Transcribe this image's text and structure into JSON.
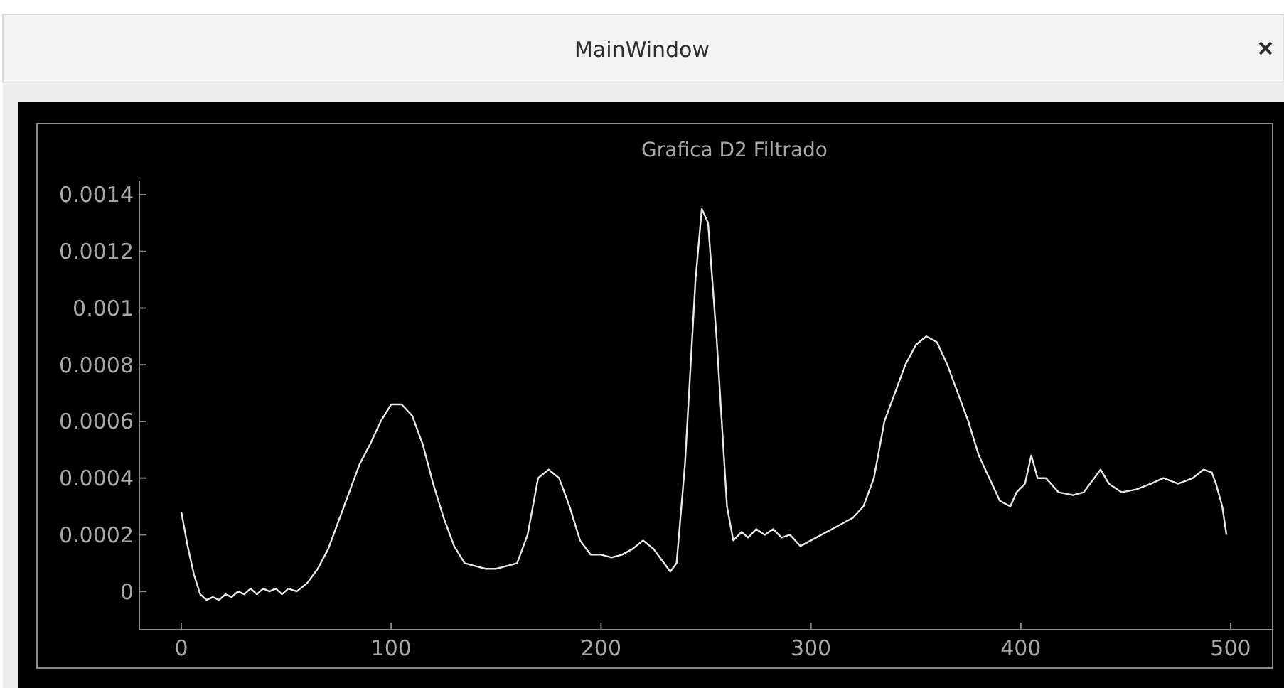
{
  "chart_data": {
    "type": "line",
    "title": "Grafica D2 Filtrado",
    "annotations": [
      "MainWindow"
    ],
    "x": [
      0,
      3,
      6,
      9,
      12,
      15,
      18,
      21,
      24,
      27,
      30,
      33,
      36,
      39,
      42,
      45,
      48,
      51,
      55,
      60,
      65,
      70,
      75,
      80,
      85,
      90,
      95,
      100,
      105,
      110,
      115,
      120,
      125,
      130,
      135,
      140,
      145,
      150,
      155,
      160,
      165,
      170,
      175,
      180,
      185,
      190,
      195,
      200,
      205,
      210,
      215,
      220,
      225,
      230,
      233,
      236,
      240,
      245,
      248,
      251,
      255,
      260,
      263,
      267,
      270,
      274,
      278,
      282,
      286,
      290,
      295,
      300,
      305,
      310,
      315,
      320,
      325,
      330,
      335,
      340,
      345,
      350,
      355,
      360,
      365,
      370,
      375,
      380,
      385,
      390,
      395,
      398,
      402,
      405,
      408,
      412,
      418,
      425,
      430,
      435,
      438,
      442,
      448,
      455,
      462,
      468,
      475,
      482,
      487,
      491,
      493,
      496,
      498
    ],
    "series": [
      {
        "color": "#e8e8e8",
        "values": [
          0.00028,
          0.00016,
          6e-05,
          -1e-05,
          -3e-05,
          -2e-05,
          -3e-05,
          -1e-05,
          -2e-05,
          0.0,
          -1e-05,
          1e-05,
          -1e-05,
          1e-05,
          0.0,
          1e-05,
          -1e-05,
          1e-05,
          0.0,
          3e-05,
          8e-05,
          0.00015,
          0.00025,
          0.00035,
          0.00045,
          0.00052,
          0.0006,
          0.00066,
          0.00066,
          0.00062,
          0.00052,
          0.00038,
          0.00026,
          0.00016,
          0.0001,
          9e-05,
          8e-05,
          8e-05,
          9e-05,
          0.0001,
          0.0002,
          0.0004,
          0.00043,
          0.0004,
          0.0003,
          0.00018,
          0.00013,
          0.00013,
          0.00012,
          0.00013,
          0.00015,
          0.00018,
          0.00015,
          0.0001,
          7e-05,
          0.0001,
          0.00045,
          0.0011,
          0.00135,
          0.0013,
          0.0009,
          0.0003,
          0.00018,
          0.00021,
          0.00019,
          0.00022,
          0.0002,
          0.00022,
          0.00019,
          0.0002,
          0.00016,
          0.00018,
          0.0002,
          0.00022,
          0.00024,
          0.00026,
          0.0003,
          0.0004,
          0.0006,
          0.0007,
          0.0008,
          0.00087,
          0.0009,
          0.00088,
          0.0008,
          0.0007,
          0.0006,
          0.00048,
          0.0004,
          0.00032,
          0.0003,
          0.00035,
          0.00038,
          0.00048,
          0.0004,
          0.0004,
          0.00035,
          0.00034,
          0.00035,
          0.0004,
          0.00043,
          0.00038,
          0.00035,
          0.00036,
          0.00038,
          0.0004,
          0.00038,
          0.0004,
          0.00043,
          0.00042,
          0.00038,
          0.0003,
          0.0002
        ]
      }
    ],
    "xlim": [
      -20,
      520
    ],
    "ylim": [
      -0.000135,
      0.00145
    ],
    "xticks": [
      0,
      100,
      200,
      300,
      400,
      500
    ],
    "yticks": [
      0,
      0.0002,
      0.0004,
      0.0006,
      0.0008,
      0.001,
      0.0012,
      0.0014
    ],
    "grid": false,
    "marker": "none",
    "line_style": "solid"
  }
}
